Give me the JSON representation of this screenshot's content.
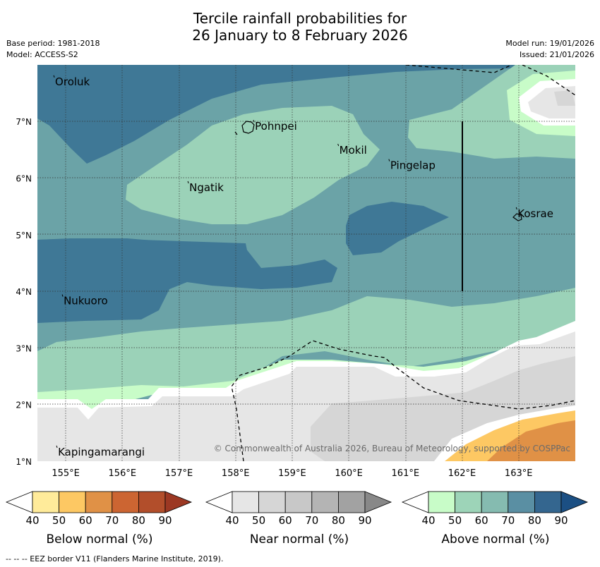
{
  "title": {
    "line1": "Tercile rainfall probabilities for",
    "line2": "26 January to 8 February 2026"
  },
  "meta": {
    "base_period": "Base period: 1981-2018",
    "model": "Model: ACCESS-S2",
    "model_run": "Model run: 19/01/2026",
    "issued": "Issued: 21/01/2026"
  },
  "map": {
    "lat_ticks": [
      "1°N",
      "2°N",
      "3°N",
      "4°N",
      "5°N",
      "6°N",
      "7°N"
    ],
    "lon_ticks": [
      "155°E",
      "156°E",
      "157°E",
      "158°E",
      "159°E",
      "160°E",
      "161°E",
      "162°E",
      "163°E"
    ],
    "places": [
      {
        "name": "Oroluk",
        "lon": 154.8,
        "lat": 7.64
      },
      {
        "name": "Pohnpei",
        "lon": 158.33,
        "lat": 6.85
      },
      {
        "name": "Mokil",
        "lon": 159.82,
        "lat": 6.43
      },
      {
        "name": "Pingelap",
        "lon": 160.72,
        "lat": 6.16
      },
      {
        "name": "Ngatik",
        "lon": 157.17,
        "lat": 5.77
      },
      {
        "name": "Kosrae",
        "lon": 162.97,
        "lat": 5.31
      },
      {
        "name": "Nukuoro",
        "lon": 154.95,
        "lat": 3.77
      },
      {
        "name": "Kapingamarangi",
        "lon": 154.85,
        "lat": 1.1
      }
    ],
    "copyright": "© Commonwealth of Australia 2026, Bureau of Meteorology, supported by COSPPac"
  },
  "colorbars": [
    {
      "title": "Below normal (%)",
      "labels": [
        "40",
        "50",
        "60",
        "70",
        "80",
        "90"
      ],
      "colors": [
        "#ffffff",
        "#ffeb9a",
        "#fdc863",
        "#e09146",
        "#cc6532",
        "#b24e2b",
        "#9c3823"
      ]
    },
    {
      "title": "Near normal (%)",
      "labels": [
        "40",
        "50",
        "60",
        "70",
        "80",
        "90"
      ],
      "colors": [
        "#ffffff",
        "#e6e6e6",
        "#d6d6d6",
        "#c8c8c8",
        "#b4b4b4",
        "#a2a2a2",
        "#888888"
      ]
    },
    {
      "title": "Above normal (%)",
      "labels": [
        "40",
        "50",
        "60",
        "70",
        "80",
        "90"
      ],
      "colors": [
        "#ffffff",
        "#c8fcc8",
        "#9dd4b8",
        "#85bbb0",
        "#5a8fa3",
        "#34668f",
        "#1b4f83"
      ]
    }
  ],
  "legend_note": "-- -- -- EEZ border V11 (Flanders Marine Institute, 2019)."
}
